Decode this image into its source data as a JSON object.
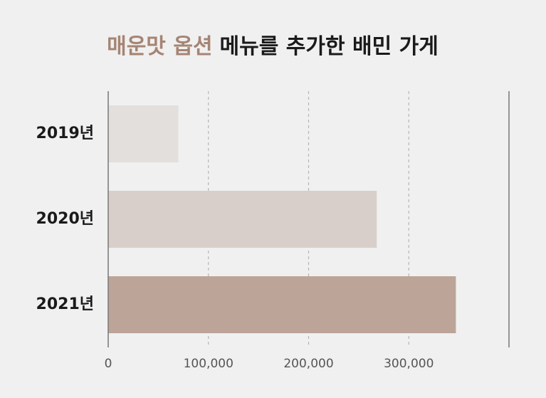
{
  "chart_data": {
    "type": "bar",
    "orientation": "horizontal",
    "title_parts": [
      {
        "text": "매운맛 옵션",
        "color": "#a68474"
      },
      {
        "text": "메뉴를 추가한 배민 가게",
        "color": "#1a1a1a"
      }
    ],
    "categories": [
      "2019년",
      "2020년",
      "2021년"
    ],
    "values": [
      70000,
      268000,
      347000
    ],
    "colors": [
      "#e3dfdc",
      "#d8cfca",
      "#bca498"
    ],
    "xlim": [
      0,
      400000
    ],
    "xticks": [
      0,
      {
        "value": 100000,
        "label": "100,000"
      },
      {
        "value": 200000,
        "label": "200,000"
      },
      {
        "value": 300000,
        "label": "300,000"
      }
    ],
    "grid": true
  }
}
